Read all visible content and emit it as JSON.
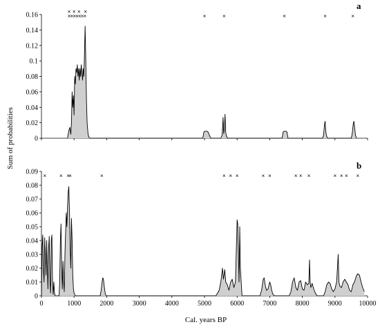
{
  "chart_data": {
    "type": "area",
    "xlabel": "Cal. years BP",
    "ylabel": "Sum of probabilities",
    "xlim": [
      0,
      10000
    ],
    "x_ticks": [
      "0",
      "1000",
      "2000",
      "3000",
      "4000",
      "5000",
      "6000",
      "7000",
      "8000",
      "9000",
      "10000"
    ],
    "fill_color": "#cfcfcf",
    "line_color": "#000000",
    "panels": [
      {
        "letter": "a",
        "ylim": [
          0,
          0.16
        ],
        "y_ticks": [
          "0",
          "0.02",
          "0.04",
          "0.06",
          "0.08",
          "0.1",
          "0.12",
          "0.14",
          "0.16"
        ],
        "marker_rows": [
          {
            "level": 0.164,
            "symbol": "×",
            "x": [
              850,
              1000,
              1150,
              1350
            ]
          },
          {
            "level": 0.158,
            "symbol": "×",
            "x": [
              850,
              930,
              1010,
              1090,
              1170,
              1250,
              1330
            ]
          },
          {
            "level": 0.158,
            "symbol": "×",
            "x": [
              5000,
              5600,
              7450,
              8700,
              9550
            ]
          }
        ],
        "series": [
          {
            "x": [
              800,
              840,
              870,
              900,
              920,
              940,
              960,
              980,
              1000,
              1020,
              1040,
              1060,
              1080,
              1100,
              1120,
              1140,
              1160,
              1180,
              1200,
              1220,
              1240,
              1260,
              1280,
              1300,
              1320,
              1340,
              1360,
              1380,
              1400,
              1430,
              1460,
              1500,
              4950,
              4980,
              5010,
              5050,
              5080,
              5110,
              5140,
              5170,
              5200,
              5500,
              5540,
              5570,
              5590,
              5610,
              5630,
              5650,
              5670,
              5690,
              5720,
              7380,
              7410,
              7440,
              7470,
              7500,
              7530,
              7560,
              8620,
              8650,
              8680,
              8700,
              8720,
              8750,
              8780,
              9500,
              9530,
              9560,
              9580,
              9600,
              9630,
              9660
            ],
            "y": [
              0,
              0.01,
              0.014,
              0.005,
              0.02,
              0.06,
              0.04,
              0.055,
              0.03,
              0.08,
              0.07,
              0.09,
              0.085,
              0.095,
              0.08,
              0.09,
              0.075,
              0.09,
              0.08,
              0.095,
              0.085,
              0.075,
              0.09,
              0.08,
              0.11,
              0.145,
              0.1,
              0.05,
              0.02,
              0.005,
              0.001,
              0,
              0,
              0.008,
              0.009,
              0.009,
              0.009,
              0.008,
              0.005,
              0.002,
              0,
              0,
              0.004,
              0.027,
              0.006,
              0.012,
              0.031,
              0.008,
              0.003,
              0.001,
              0,
              0,
              0.008,
              0.009,
              0.009,
              0.009,
              0.008,
              0,
              0,
              0.004,
              0.018,
              0.022,
              0.008,
              0.002,
              0,
              0,
              0.006,
              0.018,
              0.022,
              0.015,
              0.004,
              0
            ]
          }
        ]
      },
      {
        "letter": "b",
        "ylim": [
          0,
          0.09
        ],
        "y_ticks": [
          "0",
          "0.01",
          "0.02",
          "0.03",
          "0.04",
          "0.05",
          "0.06",
          "0.07",
          "0.08",
          "0.09"
        ],
        "marker_rows": [
          {
            "level": 0.087,
            "symbol": "×",
            "x": [
              100,
              600,
              820,
              880,
              1850,
              5600,
              5800,
              6000,
              6800,
              7000,
              7800,
              7950,
              8200,
              9000,
              9200,
              9350,
              9700
            ]
          }
        ],
        "series": [
          {
            "x": [
              0,
              20,
              40,
              60,
              80,
              100,
              120,
              140,
              160,
              180,
              200,
              220,
              240,
              260,
              280,
              300,
              320,
              340,
              360,
              380,
              400,
              420,
              540,
              560,
              580,
              600,
              620,
              640,
              660,
              680,
              700,
              720,
              740,
              760,
              780,
              800,
              820,
              840,
              860,
              880,
              900,
              920,
              940,
              960,
              980,
              1000,
              1020,
              1040,
              1800,
              1830,
              1860,
              1880,
              1900,
              1930,
              1960,
              2000,
              5350,
              5400,
              5450,
              5500,
              5550,
              5580,
              5620,
              5650,
              5700,
              5750,
              5800,
              5850,
              5900,
              5950,
              6000,
              6020,
              6040,
              6060,
              6080,
              6100,
              6150,
              6700,
              6750,
              6800,
              6830,
              6860,
              6900,
              6950,
              7000,
              7030,
              7060,
              7100,
              7150,
              7600,
              7650,
              7700,
              7750,
              7800,
              7850,
              7900,
              7950,
              8000,
              8050,
              8100,
              8150,
              8200,
              8220,
              8240,
              8260,
              8300,
              8350,
              8400,
              8450,
              8650,
              8700,
              8750,
              8800,
              8850,
              8900,
              8950,
              9000,
              9050,
              9080,
              9100,
              9120,
              9150,
              9200,
              9250,
              9300,
              9350,
              9400,
              9450,
              9500,
              9550,
              9600,
              9650,
              9700,
              9750,
              9800,
              9850,
              9900
            ],
            "y": [
              0,
              0.035,
              0.044,
              0.02,
              0.01,
              0.042,
              0.03,
              0.015,
              0.04,
              0.02,
              0.005,
              0.035,
              0.043,
              0.01,
              0.002,
              0.04,
              0.044,
              0.01,
              0.001,
              0.01,
              0.002,
              0,
              0,
              0.01,
              0.04,
              0.052,
              0.02,
              0.005,
              0.025,
              0.01,
              0.003,
              0.03,
              0.045,
              0.06,
              0.05,
              0.065,
              0.075,
              0.079,
              0.06,
              0.035,
              0.02,
              0.056,
              0.04,
              0.015,
              0.005,
              0.002,
              0.001,
              0,
              0,
              0.004,
              0.01,
              0.013,
              0.012,
              0.006,
              0.001,
              0,
              0,
              0.002,
              0.004,
              0.01,
              0.02,
              0.012,
              0.019,
              0.01,
              0.008,
              0.004,
              0.01,
              0.012,
              0.006,
              0.01,
              0.055,
              0.052,
              0.03,
              0.01,
              0.05,
              0.02,
              0,
              0,
              0.004,
              0.012,
              0.013,
              0.008,
              0.004,
              0.005,
              0.01,
              0.008,
              0.004,
              0.001,
              0,
              0,
              0.003,
              0.01,
              0.013,
              0.006,
              0.004,
              0.01,
              0.011,
              0.005,
              0.004,
              0.01,
              0.008,
              0.009,
              0.026,
              0.01,
              0.006,
              0.009,
              0.005,
              0.002,
              0,
              0,
              0.003,
              0.008,
              0.01,
              0.009,
              0.005,
              0.003,
              0.005,
              0.01,
              0.022,
              0.03,
              0.01,
              0.007,
              0.006,
              0.01,
              0.012,
              0.01,
              0.008,
              0.004,
              0.003,
              0.008,
              0.01,
              0.014,
              0.016,
              0.015,
              0.01,
              0.006,
              0.003
            ]
          }
        ]
      }
    ]
  }
}
